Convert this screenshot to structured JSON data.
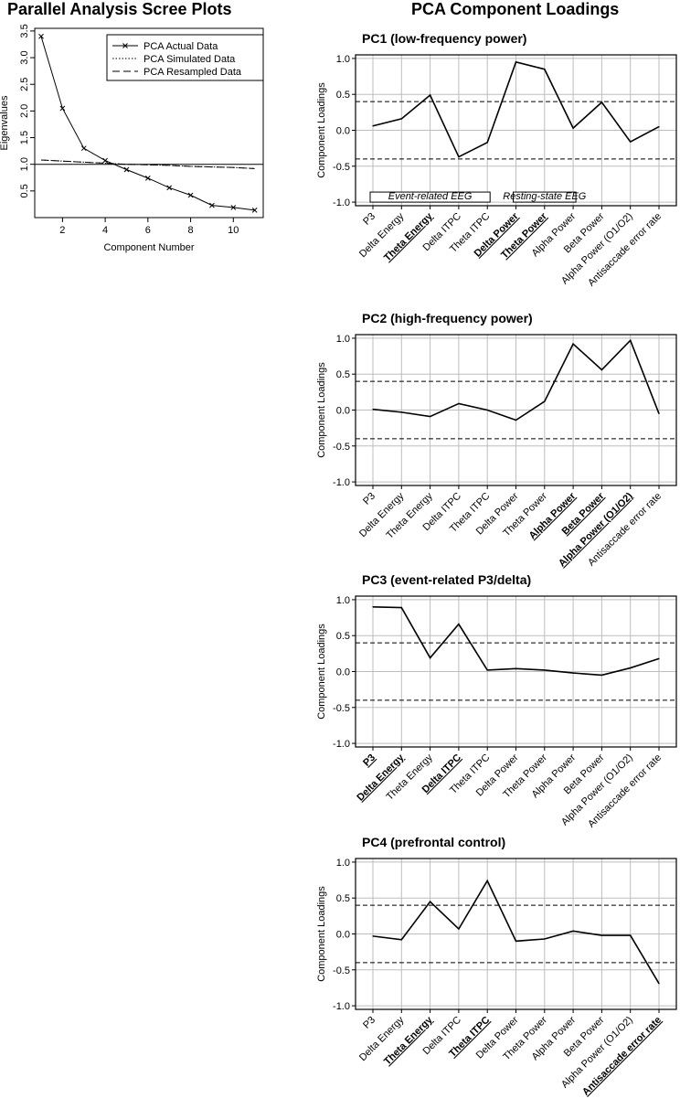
{
  "headings": {
    "left": "Parallel Analysis Scree Plots",
    "right": "PCA Component Loadings"
  },
  "chart_data": [
    {
      "type": "line",
      "xlabel": "Component Number",
      "ylabel": "Eigenvalues",
      "xlim": [
        0.7,
        11.4
      ],
      "ylim": [
        0,
        3.55
      ],
      "xticks": [
        2,
        4,
        6,
        8,
        10
      ],
      "yticks": [
        0.5,
        1.0,
        1.5,
        2.0,
        2.5,
        3.0,
        3.5
      ],
      "reference_line": 1.0,
      "legend_position": "top-right",
      "x": [
        1,
        2,
        3,
        4,
        5,
        6,
        7,
        8,
        9,
        10,
        11
      ],
      "series": [
        {
          "name": "PCA Actual Data",
          "style": "solid-x",
          "values": [
            3.4,
            2.05,
            1.3,
            1.07,
            0.9,
            0.74,
            0.56,
            0.42,
            0.23,
            0.19,
            0.14
          ]
        },
        {
          "name": "PCA Simulated Data",
          "style": "dotted",
          "values": [
            1.08,
            1.06,
            1.04,
            1.02,
            1.0,
            0.99,
            0.98,
            0.96,
            0.95,
            0.94,
            0.92
          ]
        },
        {
          "name": "PCA Resampled Data",
          "style": "dashed",
          "values": [
            1.08,
            1.06,
            1.04,
            1.02,
            1.0,
            0.99,
            0.98,
            0.96,
            0.95,
            0.94,
            0.92
          ]
        }
      ]
    },
    {
      "type": "line",
      "title": "PC1 (low-frequency power)",
      "ylabel": "Component Loadings",
      "ylim": [
        -1.05,
        1.05
      ],
      "yticks": [
        -1.0,
        -0.5,
        0.0,
        0.5,
        1.0
      ],
      "thresholds": [
        0.4,
        -0.4
      ],
      "categories": [
        "P3",
        "Delta Energy",
        "Theta Energy",
        "Delta ITPC",
        "Theta ITPC",
        "Delta Power",
        "Theta Power",
        "Alpha Power",
        "Beta Power",
        "Alpha Power (O1/O2)",
        "Antisaccade error rate"
      ],
      "highlight": [
        "Theta Energy",
        "Delta Power",
        "Theta Power"
      ],
      "groups": [
        {
          "label": "Event-related EEG",
          "from": "P3",
          "to": "Theta ITPC"
        },
        {
          "label": "Resting-state EEG",
          "from": "Delta Power",
          "to": "Alpha Power"
        }
      ],
      "values": [
        0.06,
        0.16,
        0.49,
        -0.37,
        -0.17,
        0.95,
        0.85,
        0.03,
        0.39,
        -0.16,
        0.05
      ]
    },
    {
      "type": "line",
      "title": "PC2 (high-frequency power)",
      "ylabel": "Component Loadings",
      "ylim": [
        -1.05,
        1.05
      ],
      "yticks": [
        -1.0,
        -0.5,
        0.0,
        0.5,
        1.0
      ],
      "thresholds": [
        0.4,
        -0.4
      ],
      "categories": [
        "P3",
        "Delta Energy",
        "Theta Energy",
        "Delta ITPC",
        "Theta ITPC",
        "Delta Power",
        "Theta Power",
        "Alpha Power",
        "Beta Power",
        "Alpha Power (O1/O2)",
        "Antisaccade error rate"
      ],
      "highlight": [
        "Alpha Power",
        "Beta Power",
        "Alpha Power (O1/O2)"
      ],
      "values": [
        0.01,
        -0.03,
        -0.09,
        0.09,
        0.0,
        -0.14,
        0.12,
        0.92,
        0.56,
        0.97,
        -0.05
      ]
    },
    {
      "type": "line",
      "title": "PC3 (event-related P3/delta)",
      "ylabel": "Component Loadings",
      "ylim": [
        -1.05,
        1.05
      ],
      "yticks": [
        -1.0,
        -0.5,
        0.0,
        0.5,
        1.0
      ],
      "thresholds": [
        0.4,
        -0.4
      ],
      "categories": [
        "P3",
        "Delta Energy",
        "Theta Energy",
        "Delta ITPC",
        "Theta ITPC",
        "Delta Power",
        "Theta Power",
        "Alpha Power",
        "Beta Power",
        "Alpha Power (O1/O2)",
        "Antisaccade error rate"
      ],
      "highlight": [
        "P3",
        "Delta Energy",
        "Delta ITPC"
      ],
      "values": [
        0.9,
        0.89,
        0.19,
        0.66,
        0.02,
        0.04,
        0.02,
        -0.02,
        -0.05,
        0.05,
        0.18
      ]
    },
    {
      "type": "line",
      "title": "PC4 (prefrontal control)",
      "ylabel": "Component Loadings",
      "ylim": [
        -1.05,
        1.05
      ],
      "yticks": [
        -1.0,
        -0.5,
        0.0,
        0.5,
        1.0
      ],
      "thresholds": [
        0.4,
        -0.4
      ],
      "categories": [
        "P3",
        "Delta Energy",
        "Theta Energy",
        "Delta ITPC",
        "Theta ITPC",
        "Delta Power",
        "Theta Power",
        "Alpha Power",
        "Beta Power",
        "Alpha Power (O1/O2)",
        "Antisaccade error rate"
      ],
      "highlight": [
        "Theta Energy",
        "Theta ITPC",
        "Antisaccade error rate"
      ],
      "values": [
        -0.03,
        -0.08,
        0.45,
        0.07,
        0.74,
        -0.1,
        -0.07,
        0.04,
        -0.02,
        -0.02,
        -0.69
      ]
    }
  ]
}
